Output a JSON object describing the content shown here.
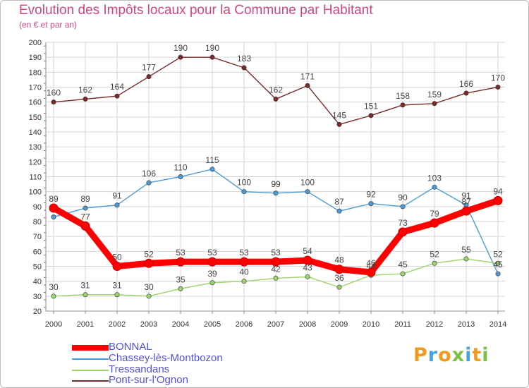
{
  "title": "Evolution des Impôts locaux pour la Commune par Habitant",
  "subtitle": "(en € et par an)",
  "logo_text": "Proxiti",
  "colors": {
    "title": "#d04585",
    "legend_text": "#5050e0",
    "axis": "#8d8d8d",
    "grid": "#d6d6d6"
  },
  "chart_data": {
    "type": "line",
    "title": "Evolution des Impôts locaux pour la Commune par Habitant",
    "subtitle": "(en € et par an)",
    "x": [
      "2000",
      "2001",
      "2002",
      "2003",
      "2004",
      "2005",
      "2006",
      "2007",
      "2008",
      "2009",
      "2010",
      "2011",
      "2012",
      "2013",
      "2014"
    ],
    "ylim": [
      20,
      200
    ],
    "yticks": [
      20,
      30,
      40,
      50,
      60,
      70,
      80,
      90,
      100,
      110,
      120,
      130,
      140,
      150,
      160,
      170,
      180,
      190,
      200
    ],
    "grid": true,
    "legend_position": "bottom-left",
    "series": [
      {
        "name": "BONNAL",
        "color": "#ff0000",
        "values": [
          89,
          77,
          50,
          52,
          53,
          53,
          53,
          53,
          54,
          48,
          46,
          73,
          79,
          87,
          94
        ]
      },
      {
        "name": "Chassey-lès-Montbozon",
        "color": "#4c9ad6",
        "values": [
          83,
          89,
          91,
          106,
          110,
          115,
          100,
          99,
          100,
          87,
          92,
          90,
          103,
          91,
          45
        ]
      },
      {
        "name": "Tressandans",
        "color": "#9ad46b",
        "values": [
          30,
          31,
          31,
          30,
          35,
          39,
          40,
          42,
          43,
          36,
          44,
          45,
          52,
          55,
          52
        ]
      },
      {
        "name": "Pont-sur-l'Ognon",
        "color": "#7a2a2a",
        "values": [
          160,
          162,
          164,
          177,
          190,
          190,
          183,
          162,
          171,
          145,
          151,
          158,
          159,
          166,
          170
        ]
      }
    ],
    "data_labels": [
      {
        "series": "BONNAL",
        "values": [
          "89",
          "77",
          "50",
          "52",
          "53",
          "53",
          "53",
          "53",
          "54",
          "48",
          "46",
          "73",
          "79",
          "87",
          "94"
        ]
      },
      {
        "series": "Chassey-lès-Montbozon",
        "values": [
          "",
          "89",
          "91",
          "106",
          "110",
          "115",
          "100",
          "99",
          "100",
          "87",
          "92",
          "90",
          "103",
          "91",
          "45"
        ]
      },
      {
        "series": "Tressandans",
        "values": [
          "30",
          "31",
          "31",
          "30",
          "35",
          "39",
          "40",
          "42",
          "43",
          "36",
          "44",
          "45",
          "52",
          "55",
          "52"
        ]
      },
      {
        "series": "Pont-sur-l'Ognon",
        "values": [
          "160",
          "162",
          "164",
          "177",
          "190",
          "190",
          "183",
          "162",
          "171",
          "145",
          "151",
          "158",
          "159",
          "166",
          "170"
        ]
      }
    ]
  }
}
